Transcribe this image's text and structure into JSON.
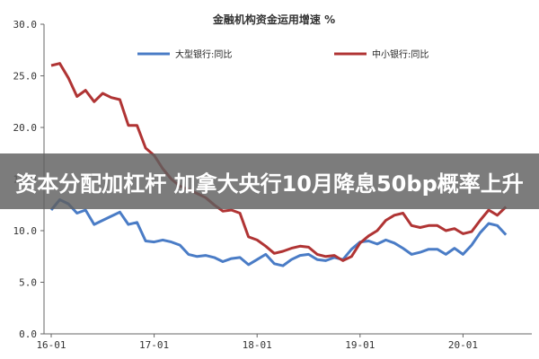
{
  "chart_data": {
    "type": "line",
    "title": "金融机构资金运用增速 %",
    "xlabel": "",
    "ylabel": "",
    "x": [
      "16-01",
      "16-02",
      "16-03",
      "16-04",
      "16-05",
      "16-06",
      "16-07",
      "16-08",
      "16-09",
      "16-10",
      "16-11",
      "16-12",
      "17-01",
      "17-02",
      "17-03",
      "17-04",
      "17-05",
      "17-06",
      "17-07",
      "17-08",
      "17-09",
      "17-10",
      "17-11",
      "17-12",
      "18-01",
      "18-02",
      "18-03",
      "18-04",
      "18-05",
      "18-06",
      "18-07",
      "18-08",
      "18-09",
      "18-10",
      "18-11",
      "18-12",
      "19-01",
      "19-02",
      "19-03",
      "19-04",
      "19-05",
      "19-06",
      "19-07",
      "19-08",
      "19-09",
      "19-10",
      "19-11",
      "19-12",
      "20-01",
      "20-02",
      "20-03",
      "20-04",
      "20-05",
      "20-06"
    ],
    "x_ticks": [
      "16-01",
      "17-01",
      "18-01",
      "19-01",
      "20-01"
    ],
    "ylim": [
      0,
      30
    ],
    "y_ticks": [
      "0.0",
      "5.0",
      "10.0",
      "15.0",
      "20.0",
      "25.0",
      "30.0"
    ],
    "legend_position": "top",
    "series": [
      {
        "name": "大型银行:同比",
        "color": "#4a7cc6",
        "values": [
          12.0,
          13.0,
          12.6,
          11.7,
          12.0,
          10.6,
          11.0,
          11.4,
          11.8,
          10.6,
          10.8,
          9.0,
          8.9,
          9.1,
          8.9,
          8.6,
          7.7,
          7.5,
          7.6,
          7.4,
          7.0,
          7.3,
          7.4,
          6.7,
          7.2,
          7.7,
          6.8,
          6.6,
          7.2,
          7.6,
          7.7,
          7.2,
          7.1,
          7.4,
          7.2,
          8.2,
          8.9,
          9.0,
          8.7,
          9.1,
          8.8,
          8.3,
          7.7,
          7.9,
          8.2,
          8.2,
          7.7,
          8.3,
          7.7,
          8.6,
          9.8,
          10.7,
          10.5,
          9.6
        ]
      },
      {
        "name": "中小银行:同比",
        "color": "#b03434",
        "values": [
          26.0,
          26.2,
          24.8,
          23.0,
          23.6,
          22.5,
          23.3,
          22.9,
          22.7,
          20.2,
          20.2,
          18.0,
          17.3,
          16.0,
          15.0,
          14.3,
          14.0,
          13.6,
          13.2,
          12.5,
          11.9,
          12.0,
          11.7,
          9.4,
          9.1,
          8.5,
          7.8,
          8.0,
          8.3,
          8.5,
          8.4,
          7.7,
          7.5,
          7.6,
          7.1,
          7.5,
          8.8,
          9.5,
          10.0,
          11.0,
          11.5,
          11.7,
          10.5,
          10.3,
          10.5,
          10.5,
          10.0,
          10.2,
          9.7,
          9.9,
          11.0,
          12.0,
          11.5,
          12.3
        ]
      }
    ],
    "grid": false
  },
  "banner": {
    "text": "资本分配加杠杆 加拿大央行10月降息50bp概率上升"
  }
}
